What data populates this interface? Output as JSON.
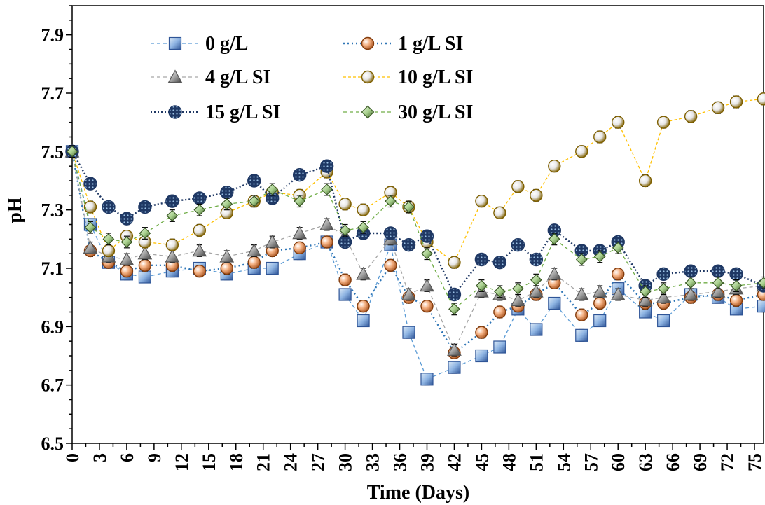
{
  "chart_data": {
    "type": "line",
    "xlabel": "Time (Days)",
    "ylabel": "pH",
    "xlim": [
      0,
      76
    ],
    "ylim": [
      6.5,
      8.0
    ],
    "yticks": [
      6.5,
      6.7,
      6.9,
      7.1,
      7.3,
      7.5,
      7.7,
      7.9
    ],
    "xticks": [
      0,
      3,
      6,
      9,
      12,
      15,
      18,
      21,
      24,
      27,
      30,
      33,
      36,
      39,
      42,
      45,
      48,
      51,
      54,
      57,
      60,
      63,
      66,
      69,
      72,
      75
    ],
    "ytick_labels": [
      "6.5",
      "6.7",
      "6.9",
      "7.1",
      "7.3",
      "7.5",
      "7.7",
      "7.9"
    ],
    "xtick_labels": [
      "0",
      "3",
      "6",
      "9",
      "12",
      "15",
      "18",
      "21",
      "24",
      "27",
      "30",
      "33",
      "36",
      "39",
      "42",
      "45",
      "48",
      "51",
      "54",
      "57",
      "60",
      "63",
      "66",
      "69",
      "72",
      "75"
    ],
    "legend_position": "top-left",
    "grid": false,
    "error_bars": 0.02,
    "x": [
      0,
      2,
      4,
      6,
      8,
      11,
      14,
      17,
      20,
      22,
      25,
      28,
      30,
      32,
      35,
      37,
      39,
      42,
      45,
      47,
      49,
      51,
      53,
      56,
      58,
      60,
      63,
      65,
      68,
      71,
      73,
      76
    ],
    "series": [
      {
        "name": "0 g/L",
        "color": "#5b9bd5",
        "dash": "5,4",
        "marker": "square",
        "values": [
          7.5,
          7.25,
          7.12,
          7.08,
          7.07,
          7.09,
          7.1,
          7.08,
          7.1,
          7.1,
          7.15,
          7.19,
          7.01,
          6.92,
          7.18,
          6.88,
          6.72,
          6.76,
          6.8,
          6.83,
          6.96,
          6.89,
          6.98,
          6.87,
          6.92,
          7.03,
          6.95,
          6.92,
          7.01,
          7.0,
          6.96,
          6.97
        ]
      },
      {
        "name": "1 g/L SI",
        "color": "#2e75b6",
        "dash": "2,4",
        "marker": "circle-orange",
        "values": [
          7.5,
          7.16,
          7.12,
          7.09,
          7.11,
          7.11,
          7.09,
          7.1,
          7.12,
          7.16,
          7.17,
          7.19,
          7.06,
          6.97,
          7.11,
          7.0,
          6.97,
          6.81,
          6.88,
          6.95,
          6.97,
          7.01,
          7.05,
          6.94,
          6.98,
          7.08,
          6.98,
          6.98,
          7.0,
          7.01,
          6.99,
          7.01
        ]
      },
      {
        "name": "4 g/L SI",
        "color": "#a6a6a6",
        "dash": "5,4",
        "marker": "triangle",
        "values": [
          7.5,
          7.17,
          7.14,
          7.13,
          7.15,
          7.14,
          7.16,
          7.14,
          7.16,
          7.19,
          7.22,
          7.25,
          7.21,
          7.08,
          7.2,
          7.01,
          7.04,
          6.82,
          7.02,
          7.01,
          6.99,
          7.02,
          7.08,
          7.01,
          7.02,
          7.01,
          6.99,
          7.0,
          7.01,
          7.02,
          7.03,
          7.04
        ]
      },
      {
        "name": "10 g/L SI",
        "color": "#ffc000",
        "dash": "4,3",
        "marker": "circle-gold",
        "values": [
          7.5,
          7.31,
          7.16,
          7.21,
          7.19,
          7.18,
          7.23,
          7.29,
          7.33,
          7.36,
          7.35,
          7.43,
          7.32,
          7.3,
          7.36,
          7.31,
          7.19,
          7.12,
          7.33,
          7.29,
          7.38,
          7.35,
          7.45,
          7.5,
          7.55,
          7.6,
          7.4,
          7.6,
          7.62,
          7.65,
          7.67,
          7.68
        ]
      },
      {
        "name": "15 g/L SI",
        "color": "#1f3864",
        "dash": "2,3",
        "marker": "circle-navy",
        "values": [
          7.5,
          7.39,
          7.31,
          7.27,
          7.31,
          7.33,
          7.34,
          7.36,
          7.4,
          7.34,
          7.42,
          7.45,
          7.19,
          7.22,
          7.22,
          7.18,
          7.21,
          7.01,
          7.13,
          7.12,
          7.18,
          7.13,
          7.23,
          7.16,
          7.16,
          7.19,
          7.04,
          7.08,
          7.09,
          7.09,
          7.08,
          7.04
        ]
      },
      {
        "name": "30 g/L SI",
        "color": "#70ad47",
        "dash": "5,4",
        "marker": "diamond",
        "values": [
          7.5,
          7.24,
          7.2,
          7.19,
          7.22,
          7.28,
          7.3,
          7.32,
          7.33,
          7.37,
          7.33,
          7.37,
          7.23,
          7.24,
          7.33,
          7.31,
          7.15,
          6.96,
          7.04,
          7.02,
          7.03,
          7.06,
          7.2,
          7.13,
          7.14,
          7.17,
          7.02,
          7.03,
          7.05,
          7.05,
          7.04,
          7.05
        ]
      }
    ]
  }
}
